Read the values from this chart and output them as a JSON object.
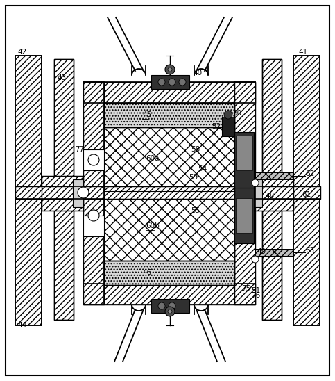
{
  "bg_color": "#ffffff",
  "border_color": "#000000",
  "figsize": [
    4.83,
    5.48
  ],
  "dpi": 100
}
